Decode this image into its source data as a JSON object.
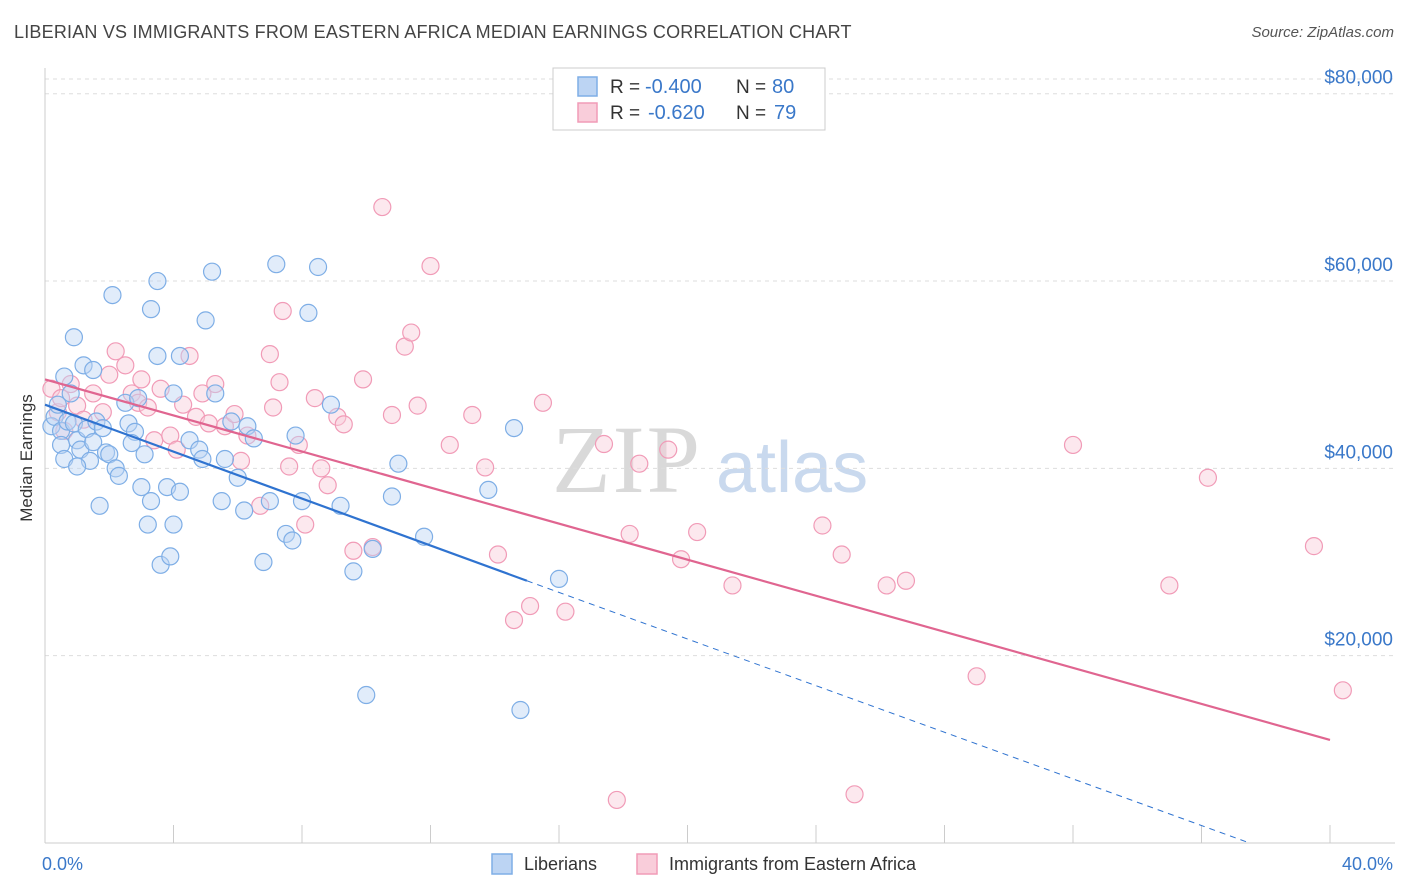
{
  "title": "LIBERIAN VS IMMIGRANTS FROM EASTERN AFRICA MEDIAN EARNINGS CORRELATION CHART",
  "source": "Source: ZipAtlas.com",
  "watermark": {
    "zip": "ZIP",
    "atlas": "atlas"
  },
  "colors": {
    "blue": "#7eaee6",
    "blue_line": "#2f73d0",
    "pink": "#f19bb7",
    "pink_line": "#e06590",
    "axis_text": "#3a78c9",
    "grid": "#dddddd"
  },
  "chart_data": {
    "type": "scatter",
    "title": "LIBERIAN VS IMMIGRANTS FROM EASTERN AFRICA MEDIAN EARNINGS CORRELATION CHART",
    "ylabel": "Median Earnings",
    "xlabel": "",
    "xlim": [
      0,
      40
    ],
    "ylim": [
      0,
      82000
    ],
    "x_tick_labels": {
      "left": "0.0%",
      "right": "40.0%"
    },
    "y_ticks": [
      {
        "value": 20000,
        "label": "$20,000"
      },
      {
        "value": 40000,
        "label": "$40,000"
      },
      {
        "value": 60000,
        "label": "$60,000"
      },
      {
        "value": 80000,
        "label": "$80,000"
      }
    ],
    "grid": true,
    "legend_top": [
      {
        "r_label": "R =",
        "r_value": "-0.400",
        "n_label": "N =",
        "n_value": "80"
      },
      {
        "r_label": "R =",
        "r_value": "-0.620",
        "n_label": "N =",
        "n_value": "79"
      }
    ],
    "series": [
      {
        "name": "Liberians",
        "color": "#7eaee6",
        "trend": {
          "x0": 0,
          "y0": 46800,
          "x1": 15,
          "y1": 28000,
          "dash_x1": 37.5,
          "dash_y1": 0
        },
        "points": [
          [
            0.2,
            44500
          ],
          [
            0.3,
            45500
          ],
          [
            0.4,
            46800
          ],
          [
            0.5,
            44000
          ],
          [
            0.5,
            42500
          ],
          [
            0.7,
            45000
          ],
          [
            0.6,
            41000
          ],
          [
            0.8,
            48000
          ],
          [
            0.9,
            54000
          ],
          [
            0.9,
            44800
          ],
          [
            1.0,
            43000
          ],
          [
            1.1,
            42000
          ],
          [
            1.2,
            51000
          ],
          [
            1.3,
            44200
          ],
          [
            1.4,
            40800
          ],
          [
            1.5,
            50500
          ],
          [
            1.5,
            42800
          ],
          [
            1.6,
            45000
          ],
          [
            1.7,
            36000
          ],
          [
            1.8,
            44300
          ],
          [
            1.9,
            41700
          ],
          [
            2.0,
            41500
          ],
          [
            2.1,
            58500
          ],
          [
            2.2,
            40000
          ],
          [
            2.3,
            39200
          ],
          [
            2.5,
            47000
          ],
          [
            2.6,
            44800
          ],
          [
            2.8,
            43900
          ],
          [
            2.9,
            47500
          ],
          [
            3.0,
            38000
          ],
          [
            3.1,
            41500
          ],
          [
            3.2,
            34000
          ],
          [
            3.3,
            57000
          ],
          [
            3.3,
            36500
          ],
          [
            3.5,
            52000
          ],
          [
            3.5,
            60000
          ],
          [
            3.6,
            29700
          ],
          [
            3.8,
            38000
          ],
          [
            4.0,
            48000
          ],
          [
            4.0,
            34000
          ],
          [
            4.2,
            52000
          ],
          [
            4.2,
            37500
          ],
          [
            4.5,
            43000
          ],
          [
            4.8,
            42000
          ],
          [
            4.9,
            41000
          ],
          [
            5.0,
            55800
          ],
          [
            5.2,
            61000
          ],
          [
            5.3,
            48000
          ],
          [
            5.5,
            36500
          ],
          [
            5.6,
            41000
          ],
          [
            5.8,
            45000
          ],
          [
            6.0,
            39000
          ],
          [
            6.2,
            35500
          ],
          [
            6.3,
            44500
          ],
          [
            6.5,
            43200
          ],
          [
            6.8,
            30000
          ],
          [
            7.0,
            36500
          ],
          [
            7.2,
            61800
          ],
          [
            7.5,
            33000
          ],
          [
            7.7,
            32300
          ],
          [
            7.8,
            43500
          ],
          [
            8.0,
            36500
          ],
          [
            8.2,
            56600
          ],
          [
            8.5,
            61500
          ],
          [
            8.9,
            46800
          ],
          [
            9.2,
            36000
          ],
          [
            9.6,
            29000
          ],
          [
            10.0,
            15800
          ],
          [
            10.2,
            31400
          ],
          [
            10.8,
            37000
          ],
          [
            11.0,
            40500
          ],
          [
            11.8,
            32700
          ],
          [
            13.8,
            37700
          ],
          [
            14.6,
            44300
          ],
          [
            14.8,
            14200
          ],
          [
            16.0,
            28200
          ],
          [
            2.7,
            42700
          ],
          [
            1.0,
            40200
          ],
          [
            0.6,
            49800
          ],
          [
            3.9,
            30600
          ]
        ]
      },
      {
        "name": "Immigrants from Eastern Africa",
        "color": "#f19bb7",
        "trend": {
          "x0": 0,
          "y0": 49500,
          "x1": 40,
          "y1": 11000
        },
        "points": [
          [
            0.2,
            48500
          ],
          [
            0.4,
            46000
          ],
          [
            0.5,
            47500
          ],
          [
            0.6,
            44000
          ],
          [
            0.8,
            49000
          ],
          [
            1.0,
            46700
          ],
          [
            1.2,
            45200
          ],
          [
            1.5,
            48000
          ],
          [
            1.8,
            46000
          ],
          [
            2.0,
            50000
          ],
          [
            2.2,
            52500
          ],
          [
            2.5,
            51000
          ],
          [
            2.7,
            48000
          ],
          [
            2.9,
            47000
          ],
          [
            3.0,
            49500
          ],
          [
            3.2,
            46500
          ],
          [
            3.4,
            43000
          ],
          [
            3.6,
            48500
          ],
          [
            3.9,
            43500
          ],
          [
            4.1,
            42000
          ],
          [
            4.3,
            46800
          ],
          [
            4.5,
            52000
          ],
          [
            4.7,
            45500
          ],
          [
            4.9,
            48000
          ],
          [
            5.1,
            44800
          ],
          [
            5.3,
            49000
          ],
          [
            5.6,
            44500
          ],
          [
            5.9,
            45800
          ],
          [
            6.1,
            40800
          ],
          [
            6.3,
            43500
          ],
          [
            6.7,
            36000
          ],
          [
            7.0,
            52200
          ],
          [
            7.1,
            46500
          ],
          [
            7.3,
            49200
          ],
          [
            7.6,
            40200
          ],
          [
            7.9,
            42500
          ],
          [
            8.1,
            34000
          ],
          [
            8.4,
            47500
          ],
          [
            8.6,
            40000
          ],
          [
            8.8,
            38200
          ],
          [
            9.1,
            45500
          ],
          [
            9.3,
            44700
          ],
          [
            9.6,
            31200
          ],
          [
            9.9,
            49500
          ],
          [
            10.2,
            31600
          ],
          [
            10.5,
            67900
          ],
          [
            10.8,
            45700
          ],
          [
            11.2,
            53000
          ],
          [
            11.4,
            54500
          ],
          [
            11.6,
            46700
          ],
          [
            12.0,
            61600
          ],
          [
            12.6,
            42500
          ],
          [
            13.3,
            45700
          ],
          [
            13.7,
            40100
          ],
          [
            14.1,
            30800
          ],
          [
            14.6,
            23800
          ],
          [
            15.1,
            25300
          ],
          [
            15.5,
            47000
          ],
          [
            16.2,
            24700
          ],
          [
            17.4,
            42600
          ],
          [
            17.8,
            4600
          ],
          [
            18.2,
            33000
          ],
          [
            18.5,
            40500
          ],
          [
            19.4,
            42000
          ],
          [
            19.8,
            30300
          ],
          [
            20.3,
            33200
          ],
          [
            21.4,
            27500
          ],
          [
            24.2,
            33900
          ],
          [
            24.8,
            30800
          ],
          [
            25.2,
            5200
          ],
          [
            26.2,
            27500
          ],
          [
            26.8,
            28000
          ],
          [
            29.0,
            17800
          ],
          [
            32.0,
            42500
          ],
          [
            35.0,
            27500
          ],
          [
            36.2,
            39000
          ],
          [
            39.5,
            31700
          ],
          [
            40.4,
            16300
          ],
          [
            7.4,
            56800
          ]
        ]
      }
    ]
  }
}
